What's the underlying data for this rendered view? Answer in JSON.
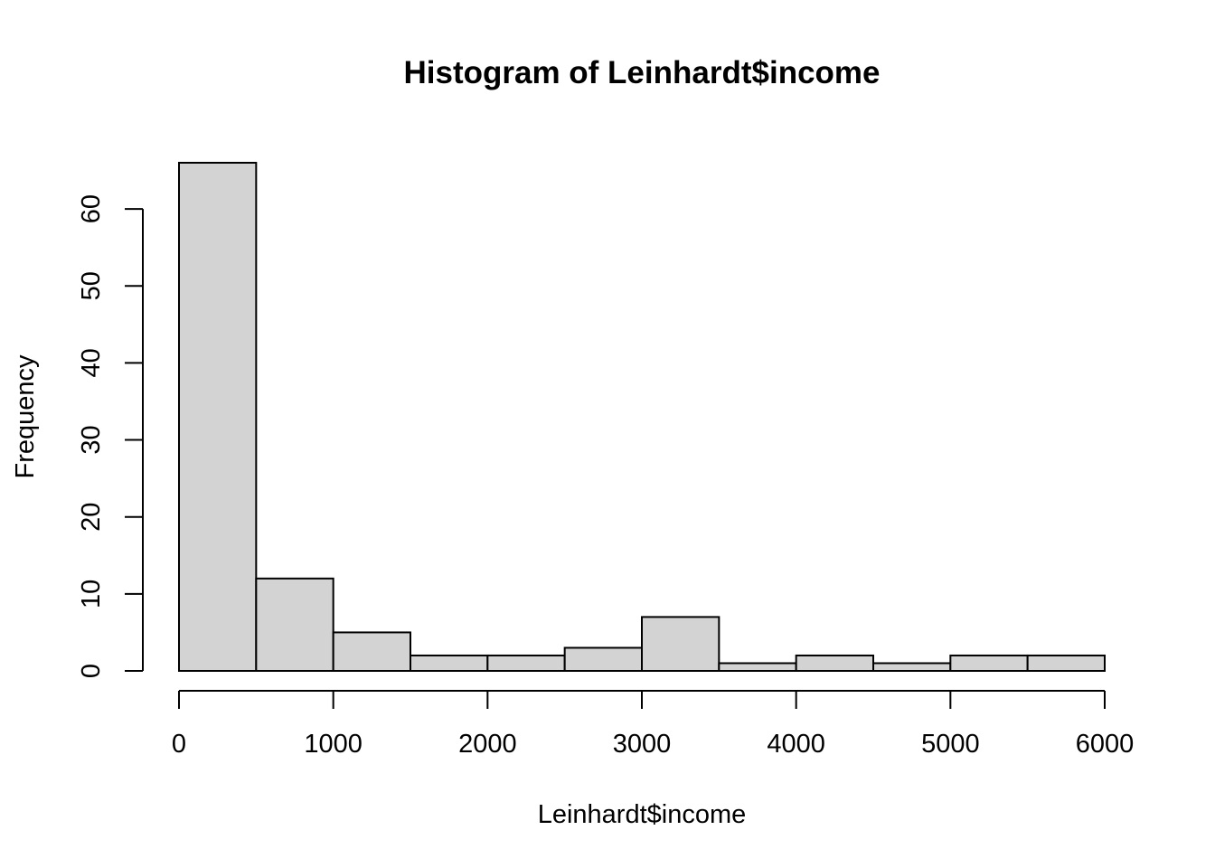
{
  "chart_data": {
    "type": "bar",
    "subtype": "histogram",
    "title": "Histogram of Leinhardt$income",
    "xlabel": "Leinhardt$income",
    "ylabel": "Frequency",
    "bins": [
      {
        "start": 0,
        "end": 500,
        "count": 66
      },
      {
        "start": 500,
        "end": 1000,
        "count": 12
      },
      {
        "start": 1000,
        "end": 1500,
        "count": 5
      },
      {
        "start": 1500,
        "end": 2000,
        "count": 2
      },
      {
        "start": 2000,
        "end": 2500,
        "count": 2
      },
      {
        "start": 2500,
        "end": 3000,
        "count": 3
      },
      {
        "start": 3000,
        "end": 3500,
        "count": 7
      },
      {
        "start": 3500,
        "end": 4000,
        "count": 1
      },
      {
        "start": 4000,
        "end": 4500,
        "count": 2
      },
      {
        "start": 4500,
        "end": 5000,
        "count": 1
      },
      {
        "start": 5000,
        "end": 5500,
        "count": 2
      },
      {
        "start": 5500,
        "end": 6000,
        "count": 2
      }
    ],
    "xlim": [
      0,
      6000
    ],
    "ylim": [
      0,
      66
    ],
    "x_ticks": [
      0,
      1000,
      2000,
      3000,
      4000,
      5000,
      6000
    ],
    "x_tick_labels": [
      "0",
      "1000",
      "2000",
      "3000",
      "4000",
      "5000",
      "6000"
    ],
    "y_ticks": [
      0,
      10,
      20,
      30,
      40,
      50,
      60
    ],
    "y_tick_labels": [
      "0",
      "10",
      "20",
      "30",
      "40",
      "50",
      "60"
    ],
    "grid": false,
    "legend": "none",
    "bar_color": "#d3d3d3",
    "edge_color": "#000000"
  }
}
